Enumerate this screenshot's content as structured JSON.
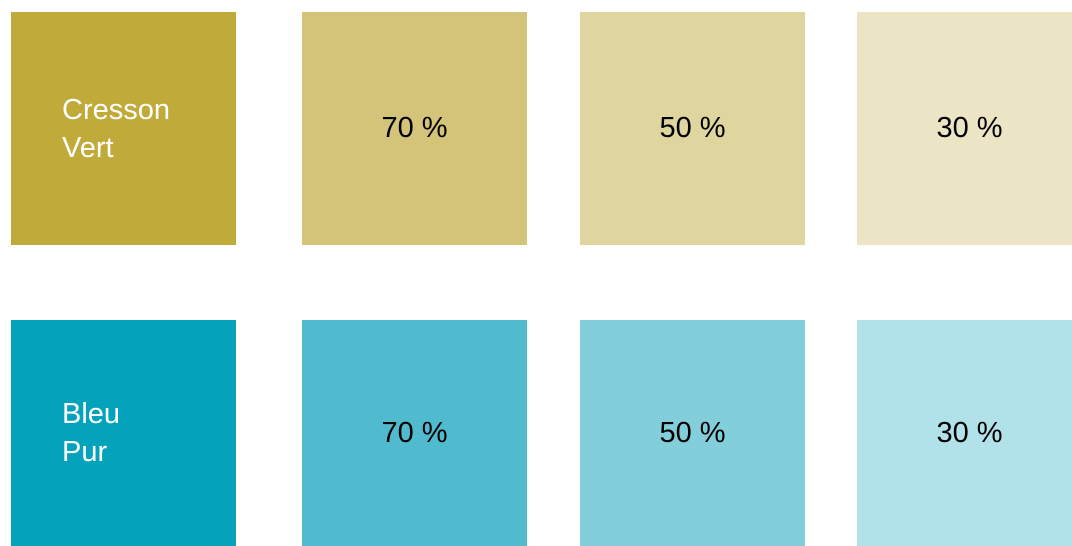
{
  "rows": [
    {
      "name": "Cresson\nVert",
      "base_color": "#bfaa3a",
      "tints": [
        {
          "label": "70 %",
          "color": "#d3c479"
        },
        {
          "label": "50 %",
          "color": "#ded59f"
        },
        {
          "label": "30 %",
          "color": "#ebe5c5"
        }
      ]
    },
    {
      "name": "Bleu\nPur",
      "base_color": "#04a3bb",
      "tints": [
        {
          "label": "70 %",
          "color": "#50bbce"
        },
        {
          "label": "50 %",
          "color": "#82cfdb"
        },
        {
          "label": "30 %",
          "color": "#b2e2e9"
        }
      ]
    }
  ]
}
